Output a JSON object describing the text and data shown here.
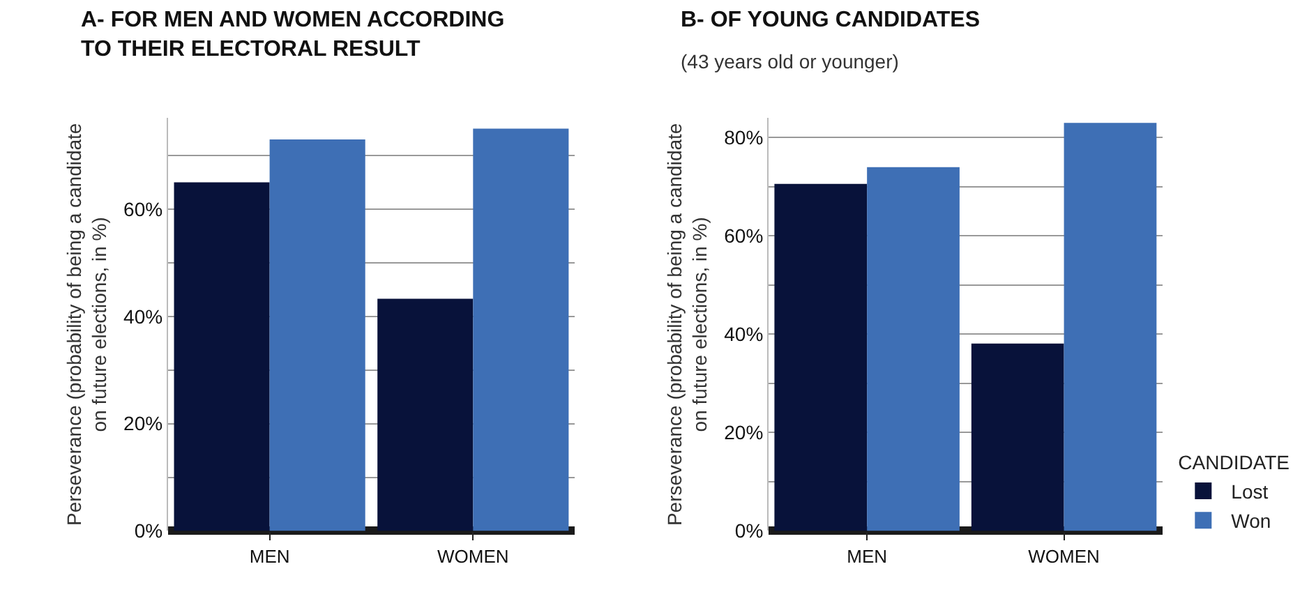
{
  "chart_data": [
    {
      "type": "bar",
      "title": "A- FOR MEN AND WOMEN ACCORDING\nTO THEIR ELECTORAL RESULT",
      "ylabel": "Perseverance (probability of being a candidate\non future elections, in %)",
      "categories": [
        "MEN",
        "WOMEN"
      ],
      "series": [
        {
          "color": "#08123a",
          "values": [
            65,
            43.3
          ]
        },
        {
          "color": "#3e6fb5",
          "values": [
            73,
            75
          ]
        }
      ],
      "ylim": [
        0,
        77
      ],
      "yticks": [
        {
          "value": 0,
          "label": "0%"
        },
        {
          "value": 10,
          "label": null
        },
        {
          "value": 20,
          "label": "20%"
        },
        {
          "value": 30,
          "label": null
        },
        {
          "value": 40,
          "label": "40%"
        },
        {
          "value": 50,
          "label": null
        },
        {
          "value": 60,
          "label": "60%"
        },
        {
          "value": 70,
          "label": null
        }
      ],
      "grid": "y",
      "legend": false
    },
    {
      "type": "bar",
      "title": "B- OF YOUNG CANDIDATES",
      "subtitle": "(43 years old or younger)",
      "ylabel": "Perseverance (probability of being a candidate\non future elections, in %)",
      "categories": [
        "MEN",
        "WOMEN"
      ],
      "legend_title": "CANDIDATE",
      "series": [
        {
          "name": "Lost",
          "color": "#08123a",
          "values": [
            70.6,
            38.1
          ]
        },
        {
          "name": "Won",
          "color": "#3e6fb5",
          "values": [
            74,
            83
          ]
        }
      ],
      "ylim": [
        0,
        84
      ],
      "yticks": [
        {
          "value": 0,
          "label": "0%"
        },
        {
          "value": 10,
          "label": null
        },
        {
          "value": 20,
          "label": "20%"
        },
        {
          "value": 30,
          "label": null
        },
        {
          "value": 40,
          "label": "40%"
        },
        {
          "value": 50,
          "label": null
        },
        {
          "value": 60,
          "label": "60%"
        },
        {
          "value": 70,
          "label": null
        },
        {
          "value": 80,
          "label": "80%"
        }
      ],
      "grid": "y",
      "legend": "bottom right"
    }
  ]
}
